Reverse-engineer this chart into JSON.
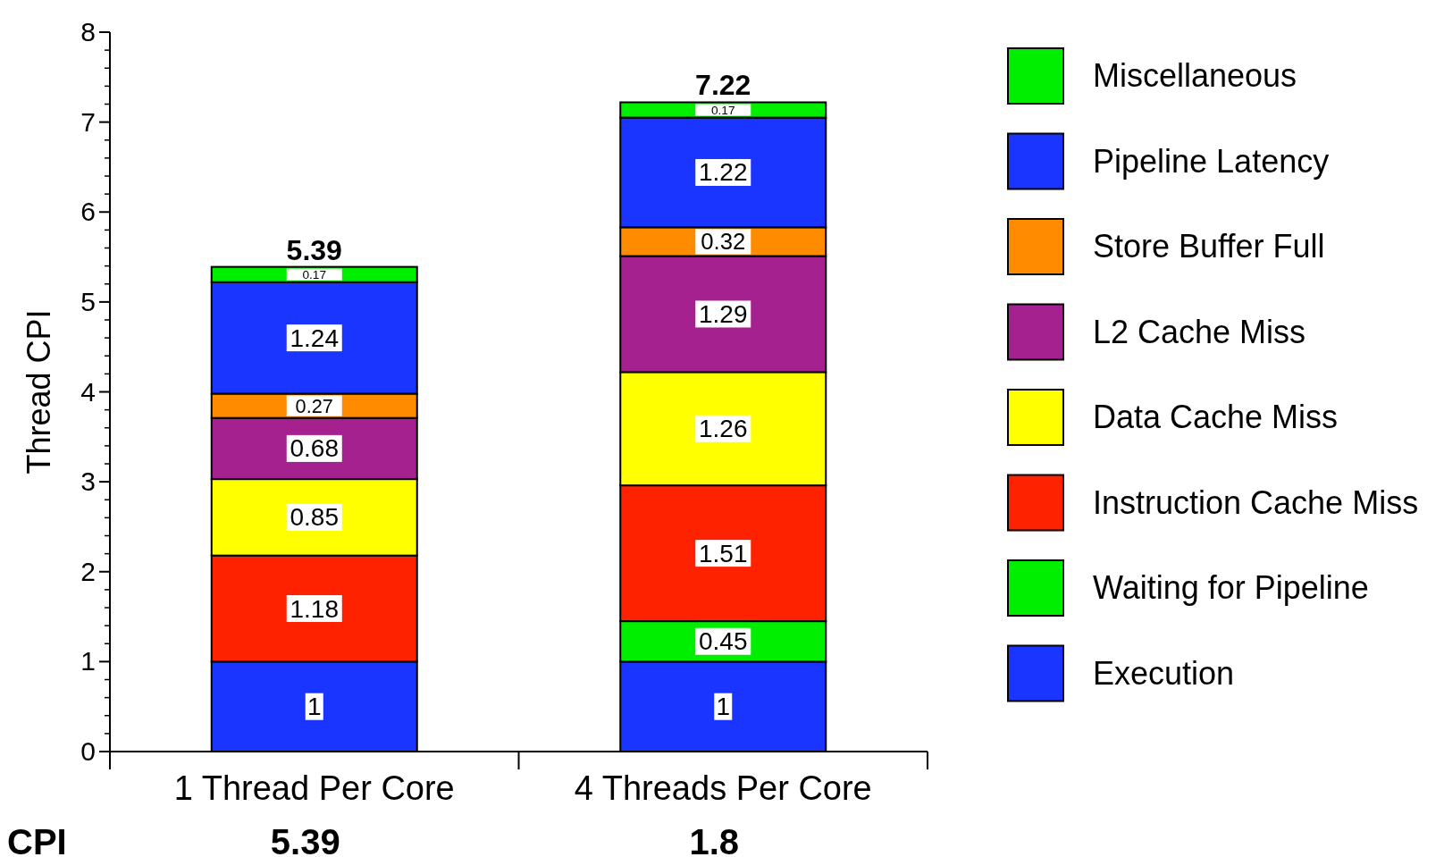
{
  "chart_data": {
    "type": "bar",
    "stacked": true,
    "ylabel": "Thread CPI",
    "categories": [
      "1 Thread Per Core",
      "4 Threads Per Core"
    ],
    "series": [
      {
        "name": "Execution",
        "color": "#1a35ff",
        "values": [
          1,
          1
        ]
      },
      {
        "name": "Waiting for Pipeline",
        "color": "#00ee00",
        "values": [
          null,
          0.45
        ]
      },
      {
        "name": "Instruction Cache Miss",
        "color": "#ff2200",
        "values": [
          1.18,
          1.51
        ]
      },
      {
        "name": "Data Cache Miss",
        "color": "#ffff00",
        "values": [
          0.85,
          1.26
        ]
      },
      {
        "name": "L2 Cache Miss",
        "color": "#a62190",
        "values": [
          0.68,
          1.29
        ]
      },
      {
        "name": "Store Buffer Full",
        "color": "#ff8c00",
        "values": [
          0.27,
          0.32
        ]
      },
      {
        "name": "Pipeline Latency",
        "color": "#1a35ff",
        "values": [
          1.24,
          1.22
        ]
      },
      {
        "name": "Miscellaneous",
        "color": "#00ee00",
        "values": [
          0.17,
          0.17
        ]
      }
    ],
    "ylim": [
      0,
      8
    ],
    "yticks": [
      0,
      1,
      2,
      3,
      4,
      5,
      6,
      7,
      8
    ],
    "data_labels": true,
    "totals": [
      "5.39",
      "7.22"
    ],
    "legend": "right",
    "grid": false,
    "annotations": [
      "CPI",
      "5.39",
      "1.8"
    ]
  }
}
